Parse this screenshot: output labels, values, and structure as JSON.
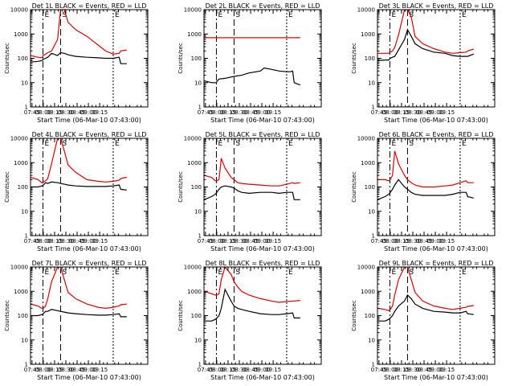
{
  "figure": {
    "panel_titles": [
      "Det 1L BLACK = Events, RED = LLD",
      "Det 2L BLACK = Events, RED = LLD",
      "Det 3L BLACK = Events, RED = LLD",
      "Det 4L BLACK = Events, RED = LLD",
      "Det 5L BLACK = Events, RED = LLD",
      "Det 6L BLACK = Events, RED = LLD",
      "Det 7L BLACK = Events, RED = LLD",
      "Det 8L BLACK = Events, RED = LLD",
      "Det 9L BLACK = Events, RED = LLD"
    ],
    "ylabel": "Counts/sec",
    "xlabel": "Start Time (06-Mar-10 07:43:00)",
    "y_tick_labels": [
      "1",
      "10",
      "100",
      "1000",
      "10000"
    ],
    "x_tick_labels": [
      "07:45",
      "08:00",
      "08:15",
      "08:30",
      "08:45",
      "09:00",
      "09:15"
    ],
    "event_markers": [
      "E",
      "S",
      "E"
    ],
    "colors": {
      "events": "#000000",
      "lld": "#dd0000"
    }
  },
  "chart_data": [
    {
      "type": "line",
      "title": "Det 1L BLACK = Events, RED = LLD",
      "xlabel": "",
      "ylabel": "Counts/sec",
      "ylog": true,
      "ylim": [
        1,
        10000
      ],
      "xlim_min": [
        0,
        156
      ],
      "x_min": [
        0,
        10,
        15,
        17,
        20,
        23,
        28,
        36,
        40,
        45,
        50,
        60,
        75,
        90,
        100,
        110,
        118,
        120,
        128
      ],
      "series": [
        {
          "name": "Events",
          "color": "#000000",
          "values": [
            70,
            75,
            80,
            90,
            100,
            110,
            160,
            130,
            170,
            160,
            140,
            120,
            110,
            105,
            100,
            100,
            110,
            60,
            60
          ]
        },
        {
          "name": "LLD",
          "color": "#dd0000",
          "values": [
            130,
            110,
            105,
            130,
            150,
            170,
            200,
            600,
            15000,
            10000,
            3000,
            1500,
            800,
            350,
            200,
            150,
            160,
            200,
            220
          ]
        }
      ]
    },
    {
      "type": "line",
      "title": "Det 2L BLACK = Events, RED = LLD",
      "xlabel": "",
      "ylabel": "Counts/sec",
      "ylog": true,
      "ylim": [
        1,
        10000
      ],
      "xlim_min": [
        0,
        156
      ],
      "x_min": [
        0,
        10,
        16,
        18,
        20,
        28,
        40,
        50,
        60,
        75,
        80,
        90,
        100,
        110,
        115,
        118,
        120,
        128
      ],
      "series": [
        {
          "name": "Events",
          "color": "#000000",
          "values": [
            12,
            10,
            10,
            12,
            14,
            15,
            18,
            20,
            25,
            30,
            40,
            35,
            30,
            28,
            28,
            30,
            10,
            8
          ]
        },
        {
          "name": "LLD",
          "color": "#dd0000",
          "values": [
            700,
            700,
            700,
            700,
            700,
            700,
            700,
            700,
            700,
            700,
            700,
            700,
            700,
            700,
            700,
            700,
            700,
            700
          ]
        }
      ]
    },
    {
      "type": "line",
      "title": "Det 3L BLACK = Events, RED = LLD",
      "xlabel": "",
      "ylabel": "Counts/sec",
      "ylog": true,
      "ylim": [
        1,
        10000
      ],
      "xlim_min": [
        0,
        156
      ],
      "x_min": [
        0,
        10,
        15,
        17,
        20,
        23,
        28,
        36,
        40,
        45,
        50,
        60,
        75,
        90,
        100,
        110,
        118,
        120,
        128
      ],
      "series": [
        {
          "name": "Events",
          "color": "#000000",
          "values": [
            80,
            85,
            85,
            100,
            110,
            120,
            220,
            600,
            1500,
            800,
            400,
            250,
            180,
            160,
            130,
            120,
            120,
            120,
            150
          ]
        },
        {
          "name": "LLD",
          "color": "#dd0000",
          "values": [
            160,
            160,
            160,
            180,
            200,
            280,
            900,
            10000,
            12000,
            5000,
            800,
            400,
            250,
            180,
            160,
            170,
            180,
            200,
            240
          ]
        }
      ]
    },
    {
      "type": "line",
      "title": "Det 4L BLACK = Events, RED = LLD",
      "xlabel": "",
      "ylabel": "Counts/sec",
      "ylog": true,
      "ylim": [
        1,
        10000
      ],
      "xlim_min": [
        0,
        156
      ],
      "x_min": [
        0,
        10,
        15,
        17,
        20,
        23,
        28,
        36,
        40,
        45,
        50,
        60,
        75,
        90,
        100,
        110,
        118,
        120,
        128
      ],
      "series": [
        {
          "name": "Events",
          "color": "#000000",
          "values": [
            100,
            100,
            110,
            120,
            150,
            140,
            160,
            150,
            140,
            130,
            120,
            110,
            105,
            105,
            105,
            110,
            120,
            80,
            75
          ]
        },
        {
          "name": "LLD",
          "color": "#dd0000",
          "values": [
            250,
            200,
            150,
            160,
            180,
            220,
            900,
            15000,
            12000,
            3000,
            800,
            400,
            200,
            170,
            160,
            170,
            190,
            220,
            250
          ]
        }
      ]
    },
    {
      "type": "line",
      "title": "Det 5L BLACK = Events, RED = LLD",
      "xlabel": "",
      "ylabel": "Counts/sec",
      "ylog": true,
      "ylim": [
        1,
        10000
      ],
      "xlim_min": [
        0,
        156
      ],
      "x_min": [
        0,
        10,
        15,
        17,
        20,
        23,
        28,
        36,
        40,
        45,
        50,
        60,
        75,
        90,
        100,
        110,
        118,
        120,
        128
      ],
      "series": [
        {
          "name": "Events",
          "color": "#000000",
          "values": [
            30,
            40,
            50,
            60,
            80,
            100,
            110,
            100,
            90,
            70,
            60,
            55,
            60,
            60,
            55,
            60,
            60,
            30,
            30
          ]
        },
        {
          "name": "LLD",
          "color": "#dd0000",
          "values": [
            300,
            250,
            180,
            180,
            200,
            1500,
            600,
            250,
            200,
            150,
            140,
            130,
            120,
            110,
            110,
            130,
            150,
            140,
            150
          ]
        }
      ]
    },
    {
      "type": "line",
      "title": "Det 6L BLACK = Events, RED = LLD",
      "xlabel": "",
      "ylabel": "Counts/sec",
      "ylog": true,
      "ylim": [
        1,
        10000
      ],
      "xlim_min": [
        0,
        156
      ],
      "x_min": [
        0,
        10,
        15,
        17,
        20,
        23,
        28,
        36,
        40,
        45,
        50,
        60,
        75,
        90,
        100,
        110,
        118,
        120,
        128
      ],
      "series": [
        {
          "name": "Events",
          "color": "#000000",
          "values": [
            30,
            40,
            50,
            60,
            80,
            120,
            200,
            100,
            80,
            60,
            50,
            45,
            45,
            45,
            50,
            60,
            60,
            40,
            35
          ]
        },
        {
          "name": "LLD",
          "color": "#dd0000",
          "values": [
            200,
            200,
            180,
            200,
            300,
            3000,
            900,
            300,
            200,
            150,
            120,
            100,
            100,
            110,
            120,
            150,
            180,
            150,
            150
          ]
        }
      ]
    },
    {
      "type": "line",
      "title": "Det 7L BLACK = Events, RED = LLD",
      "xlabel": "",
      "ylabel": "Counts/sec",
      "ylog": true,
      "ylim": [
        1,
        10000
      ],
      "xlim_min": [
        0,
        156
      ],
      "x_min": [
        0,
        10,
        15,
        17,
        20,
        23,
        28,
        36,
        40,
        45,
        50,
        60,
        75,
        90,
        100,
        110,
        118,
        120,
        128
      ],
      "series": [
        {
          "name": "Events",
          "color": "#000000",
          "values": [
            100,
            100,
            110,
            120,
            150,
            150,
            180,
            160,
            150,
            140,
            130,
            120,
            110,
            105,
            105,
            110,
            120,
            90,
            90
          ]
        },
        {
          "name": "LLD",
          "color": "#dd0000",
          "values": [
            300,
            250,
            200,
            200,
            250,
            500,
            2500,
            15000,
            10000,
            3000,
            900,
            500,
            300,
            220,
            200,
            220,
            250,
            280,
            300
          ]
        }
      ]
    },
    {
      "type": "line",
      "title": "Det 8L BLACK = Events, RED = LLD",
      "xlabel": "",
      "ylabel": "Counts/sec",
      "ylog": true,
      "ylim": [
        1,
        10000
      ],
      "xlim_min": [
        0,
        156
      ],
      "x_min": [
        0,
        10,
        15,
        17,
        20,
        23,
        28,
        36,
        40,
        45,
        50,
        60,
        75,
        90,
        100,
        110,
        118,
        120,
        128
      ],
      "series": [
        {
          "name": "Events",
          "color": "#000000",
          "values": [
            60,
            60,
            70,
            80,
            100,
            200,
            1200,
            400,
            250,
            200,
            180,
            150,
            120,
            110,
            110,
            120,
            130,
            80,
            80
          ]
        },
        {
          "name": "LLD",
          "color": "#dd0000",
          "values": [
            1000,
            800,
            700,
            700,
            800,
            3000,
            10000,
            5000,
            2500,
            1500,
            1000,
            700,
            500,
            400,
            350,
            380,
            400,
            400,
            420
          ]
        }
      ]
    },
    {
      "type": "line",
      "title": "Det 9L BLACK = Events, RED = LLD",
      "xlabel": "",
      "ylabel": "Counts/sec",
      "ylog": true,
      "ylim": [
        1,
        10000
      ],
      "xlim_min": [
        0,
        156
      ],
      "x_min": [
        0,
        10,
        15,
        17,
        20,
        23,
        28,
        36,
        40,
        45,
        50,
        60,
        75,
        90,
        100,
        110,
        118,
        120,
        128
      ],
      "series": [
        {
          "name": "Events",
          "color": "#000000",
          "values": [
            60,
            60,
            70,
            80,
            100,
            150,
            250,
            400,
            700,
            500,
            300,
            200,
            150,
            140,
            130,
            130,
            150,
            120,
            110
          ]
        },
        {
          "name": "LLD",
          "color": "#dd0000",
          "values": [
            200,
            180,
            160,
            180,
            250,
            700,
            3000,
            15000,
            10000,
            3000,
            900,
            400,
            250,
            200,
            180,
            200,
            220,
            240,
            260
          ]
        }
      ]
    }
  ]
}
